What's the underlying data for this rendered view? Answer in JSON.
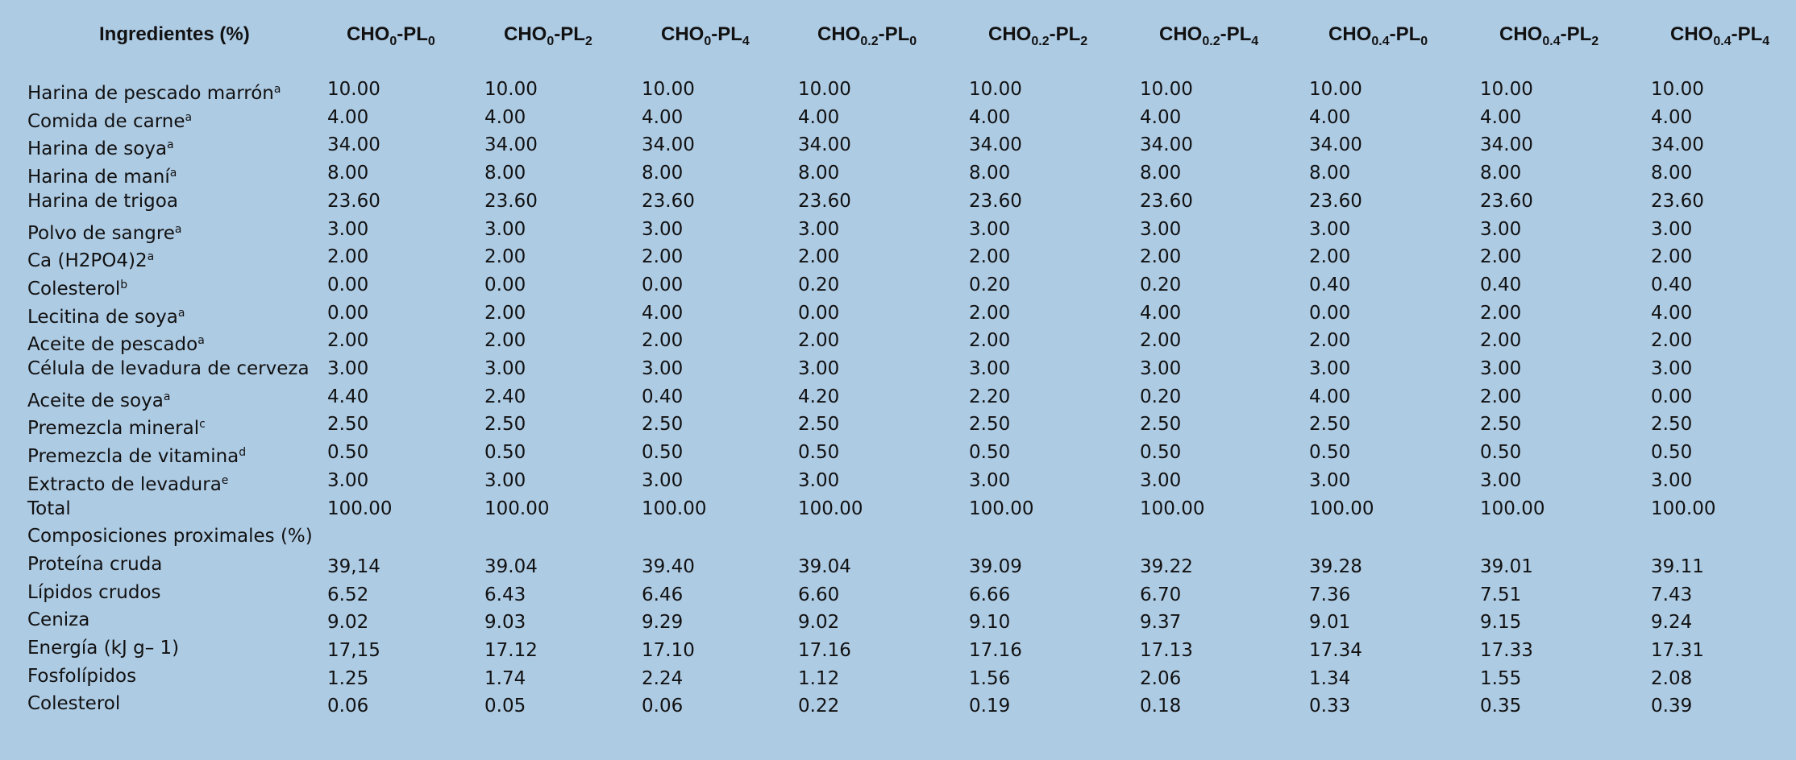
{
  "header": {
    "title": "Ingredientes (%)",
    "columns": [
      {
        "parts": [
          "CHO",
          "0",
          "-PL",
          "0"
        ]
      },
      {
        "parts": [
          "CHO",
          "0",
          "-PL",
          "2"
        ]
      },
      {
        "parts": [
          "CHO",
          "0",
          "-PL",
          "4"
        ]
      },
      {
        "parts": [
          "CHO",
          "0.2",
          "-PL",
          "0"
        ]
      },
      {
        "parts": [
          "CHO",
          "0.2",
          "-PL",
          "2"
        ]
      },
      {
        "parts": [
          "CHO",
          "0.2",
          "-PL",
          "4"
        ]
      },
      {
        "parts": [
          "CHO",
          "0.4",
          "-PL",
          "0"
        ]
      },
      {
        "parts": [
          "CHO",
          "0.4",
          "-PL",
          "2"
        ]
      },
      {
        "parts": [
          "CHO",
          "0.4",
          "-PL",
          "4"
        ]
      }
    ]
  },
  "table": {
    "rows": [
      {
        "label": "Harina de pescado marrón",
        "sup": "a",
        "values": [
          "10.00",
          "10.00",
          "10.00",
          "10.00",
          "10.00",
          "10.00",
          "10.00",
          "10.00",
          "10.00"
        ]
      },
      {
        "label": "Comida de carne",
        "sup": "a",
        "values": [
          "4.00",
          "4.00",
          "4.00",
          "4.00",
          "4.00",
          "4.00",
          "4.00",
          "4.00",
          "4.00"
        ]
      },
      {
        "label": "Harina de soya",
        "sup": "a",
        "values": [
          "34.00",
          "34.00",
          "34.00",
          "34.00",
          "34.00",
          "34.00",
          "34.00",
          "34.00",
          "34.00"
        ]
      },
      {
        "label": "Harina de maní",
        "sup": "a",
        "values": [
          "8.00",
          "8.00",
          "8.00",
          "8.00",
          "8.00",
          "8.00",
          "8.00",
          "8.00",
          "8.00"
        ]
      },
      {
        "label": "Harina de trigoa",
        "values": [
          "23.60",
          "23.60",
          "23.60",
          "23.60",
          "23.60",
          "23.60",
          "23.60",
          "23.60",
          "23.60"
        ]
      },
      {
        "label": "Polvo de sangre",
        "sup": "a",
        "values": [
          "3.00",
          "3.00",
          "3.00",
          "3.00",
          "3.00",
          "3.00",
          "3.00",
          "3.00",
          "3.00"
        ]
      },
      {
        "label": "Ca (H2PO4)2",
        "sup": "a",
        "values": [
          "2.00",
          "2.00",
          "2.00",
          "2.00",
          "2.00",
          "2.00",
          "2.00",
          "2.00",
          "2.00"
        ]
      },
      {
        "label": "Colesterol",
        "sup": "b",
        "values": [
          "0.00",
          "0.00",
          "0.00",
          "0.20",
          "0.20",
          "0.20",
          "0.40",
          "0.40",
          "0.40"
        ]
      },
      {
        "label": "Lecitina de soya",
        "sup": "a",
        "values": [
          "0.00",
          "2.00",
          "4.00",
          "0.00",
          "2.00",
          "4.00",
          "0.00",
          "2.00",
          "4.00"
        ]
      },
      {
        "label": "Aceite de pescado",
        "sup": "a",
        "values": [
          "2.00",
          "2.00",
          "2.00",
          "2.00",
          "2.00",
          "2.00",
          "2.00",
          "2.00",
          "2.00"
        ]
      },
      {
        "label": "Célula de levadura de cerveza",
        "values": [
          "3.00",
          "3.00",
          "3.00",
          "3.00",
          "3.00",
          "3.00",
          "3.00",
          "3.00",
          "3.00"
        ]
      },
      {
        "label": "Aceite de soya",
        "sup": "a",
        "values": [
          "4.40",
          "2.40",
          "0.40",
          "4.20",
          "2.20",
          "0.20",
          "4.00",
          "2.00",
          "0.00"
        ]
      },
      {
        "label": "Premezcla mineral",
        "sup": "c",
        "values": [
          "2.50",
          "2.50",
          "2.50",
          "2.50",
          "2.50",
          "2.50",
          "2.50",
          "2.50",
          "2.50"
        ]
      },
      {
        "label": "Premezcla de vitamina",
        "sup": "d",
        "values": [
          "0.50",
          "0.50",
          "0.50",
          "0.50",
          "0.50",
          "0.50",
          "0.50",
          "0.50",
          "0.50"
        ]
      },
      {
        "label": "Extracto de levadura",
        "sup": "e",
        "values": [
          "3.00",
          "3.00",
          "3.00",
          "3.00",
          "3.00",
          "3.00",
          "3.00",
          "3.00",
          "3.00"
        ]
      },
      {
        "label": "Total",
        "values": [
          "100.00",
          "100.00",
          "100.00",
          "100.00",
          "100.00",
          "100.00",
          "100.00",
          "100.00",
          "100.00"
        ]
      },
      {
        "label": "Composiciones proximales (%)"
      },
      {
        "label": "Proteína cruda",
        "values": [
          "39,14",
          "39.04",
          "39.40",
          "39.04",
          "39.09",
          "39.22",
          "39.28",
          "39.01",
          "39.11"
        ]
      },
      {
        "label": "Lípidos crudos",
        "values": [
          "6.52",
          "6.43",
          "6.46",
          "6.60",
          "6.66",
          "6.70",
          "7.36",
          "7.51",
          "7.43"
        ]
      },
      {
        "label": "Ceniza",
        "values": [
          "9.02",
          "9.03",
          "9.29",
          "9.02",
          "9.10",
          "9.37",
          "9.01",
          "9.15",
          "9.24"
        ]
      },
      {
        "label": "Energía (kJ g– 1)",
        "values": [
          "17,15",
          "17.12",
          "17.10",
          "17.16",
          "17.16",
          "17.13",
          "17.34",
          "17.33",
          "17.31"
        ]
      },
      {
        "label": "Fosfolípidos",
        "values": [
          "1.25",
          "1.74",
          "2.24",
          "1.12",
          "1.56",
          "2.06",
          "1.34",
          "1.55",
          "2.08"
        ]
      },
      {
        "label": "Colesterol",
        "values": [
          "0.06",
          "0.05",
          "0.06",
          "0.22",
          "0.19",
          "0.18",
          "0.33",
          "0.35",
          "0.39"
        ]
      }
    ]
  }
}
